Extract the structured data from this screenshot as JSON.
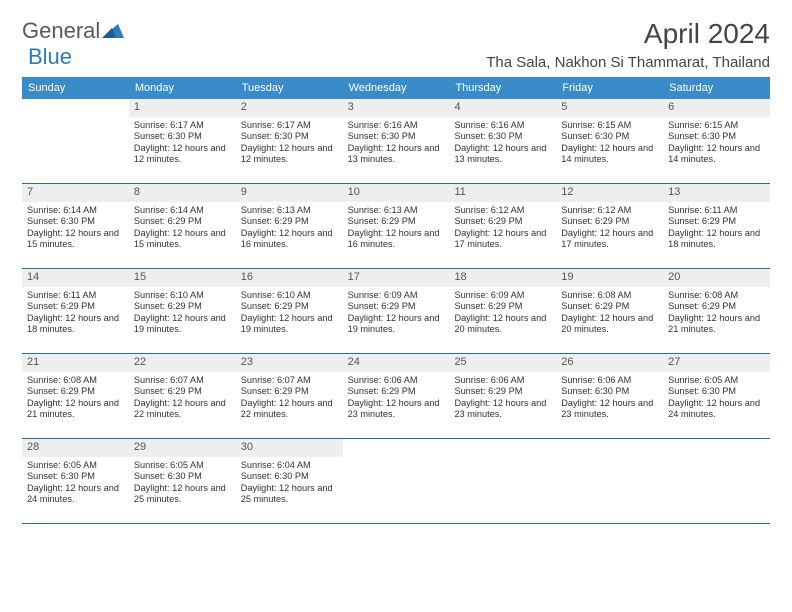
{
  "logo": {
    "text1": "General",
    "text2": "Blue"
  },
  "title": "April 2024",
  "location": "Tha Sala, Nakhon Si Thammarat, Thailand",
  "colors": {
    "header_bg": "#3a8bc9",
    "header_text": "#ffffff",
    "daynum_bg": "#eeeeee",
    "row_border": "#2f6a9e",
    "title_color": "#444444",
    "body_text": "#333333"
  },
  "dow": [
    "Sunday",
    "Monday",
    "Tuesday",
    "Wednesday",
    "Thursday",
    "Friday",
    "Saturday"
  ],
  "weeks": [
    [
      {
        "n": "",
        "sr": "",
        "ss": "",
        "dl": ""
      },
      {
        "n": "1",
        "sr": "Sunrise: 6:17 AM",
        "ss": "Sunset: 6:30 PM",
        "dl": "Daylight: 12 hours and 12 minutes."
      },
      {
        "n": "2",
        "sr": "Sunrise: 6:17 AM",
        "ss": "Sunset: 6:30 PM",
        "dl": "Daylight: 12 hours and 12 minutes."
      },
      {
        "n": "3",
        "sr": "Sunrise: 6:16 AM",
        "ss": "Sunset: 6:30 PM",
        "dl": "Daylight: 12 hours and 13 minutes."
      },
      {
        "n": "4",
        "sr": "Sunrise: 6:16 AM",
        "ss": "Sunset: 6:30 PM",
        "dl": "Daylight: 12 hours and 13 minutes."
      },
      {
        "n": "5",
        "sr": "Sunrise: 6:15 AM",
        "ss": "Sunset: 6:30 PM",
        "dl": "Daylight: 12 hours and 14 minutes."
      },
      {
        "n": "6",
        "sr": "Sunrise: 6:15 AM",
        "ss": "Sunset: 6:30 PM",
        "dl": "Daylight: 12 hours and 14 minutes."
      }
    ],
    [
      {
        "n": "7",
        "sr": "Sunrise: 6:14 AM",
        "ss": "Sunset: 6:30 PM",
        "dl": "Daylight: 12 hours and 15 minutes."
      },
      {
        "n": "8",
        "sr": "Sunrise: 6:14 AM",
        "ss": "Sunset: 6:29 PM",
        "dl": "Daylight: 12 hours and 15 minutes."
      },
      {
        "n": "9",
        "sr": "Sunrise: 6:13 AM",
        "ss": "Sunset: 6:29 PM",
        "dl": "Daylight: 12 hours and 16 minutes."
      },
      {
        "n": "10",
        "sr": "Sunrise: 6:13 AM",
        "ss": "Sunset: 6:29 PM",
        "dl": "Daylight: 12 hours and 16 minutes."
      },
      {
        "n": "11",
        "sr": "Sunrise: 6:12 AM",
        "ss": "Sunset: 6:29 PM",
        "dl": "Daylight: 12 hours and 17 minutes."
      },
      {
        "n": "12",
        "sr": "Sunrise: 6:12 AM",
        "ss": "Sunset: 6:29 PM",
        "dl": "Daylight: 12 hours and 17 minutes."
      },
      {
        "n": "13",
        "sr": "Sunrise: 6:11 AM",
        "ss": "Sunset: 6:29 PM",
        "dl": "Daylight: 12 hours and 18 minutes."
      }
    ],
    [
      {
        "n": "14",
        "sr": "Sunrise: 6:11 AM",
        "ss": "Sunset: 6:29 PM",
        "dl": "Daylight: 12 hours and 18 minutes."
      },
      {
        "n": "15",
        "sr": "Sunrise: 6:10 AM",
        "ss": "Sunset: 6:29 PM",
        "dl": "Daylight: 12 hours and 19 minutes."
      },
      {
        "n": "16",
        "sr": "Sunrise: 6:10 AM",
        "ss": "Sunset: 6:29 PM",
        "dl": "Daylight: 12 hours and 19 minutes."
      },
      {
        "n": "17",
        "sr": "Sunrise: 6:09 AM",
        "ss": "Sunset: 6:29 PM",
        "dl": "Daylight: 12 hours and 19 minutes."
      },
      {
        "n": "18",
        "sr": "Sunrise: 6:09 AM",
        "ss": "Sunset: 6:29 PM",
        "dl": "Daylight: 12 hours and 20 minutes."
      },
      {
        "n": "19",
        "sr": "Sunrise: 6:08 AM",
        "ss": "Sunset: 6:29 PM",
        "dl": "Daylight: 12 hours and 20 minutes."
      },
      {
        "n": "20",
        "sr": "Sunrise: 6:08 AM",
        "ss": "Sunset: 6:29 PM",
        "dl": "Daylight: 12 hours and 21 minutes."
      }
    ],
    [
      {
        "n": "21",
        "sr": "Sunrise: 6:08 AM",
        "ss": "Sunset: 6:29 PM",
        "dl": "Daylight: 12 hours and 21 minutes."
      },
      {
        "n": "22",
        "sr": "Sunrise: 6:07 AM",
        "ss": "Sunset: 6:29 PM",
        "dl": "Daylight: 12 hours and 22 minutes."
      },
      {
        "n": "23",
        "sr": "Sunrise: 6:07 AM",
        "ss": "Sunset: 6:29 PM",
        "dl": "Daylight: 12 hours and 22 minutes."
      },
      {
        "n": "24",
        "sr": "Sunrise: 6:06 AM",
        "ss": "Sunset: 6:29 PM",
        "dl": "Daylight: 12 hours and 23 minutes."
      },
      {
        "n": "25",
        "sr": "Sunrise: 6:06 AM",
        "ss": "Sunset: 6:29 PM",
        "dl": "Daylight: 12 hours and 23 minutes."
      },
      {
        "n": "26",
        "sr": "Sunrise: 6:06 AM",
        "ss": "Sunset: 6:30 PM",
        "dl": "Daylight: 12 hours and 23 minutes."
      },
      {
        "n": "27",
        "sr": "Sunrise: 6:05 AM",
        "ss": "Sunset: 6:30 PM",
        "dl": "Daylight: 12 hours and 24 minutes."
      }
    ],
    [
      {
        "n": "28",
        "sr": "Sunrise: 6:05 AM",
        "ss": "Sunset: 6:30 PM",
        "dl": "Daylight: 12 hours and 24 minutes."
      },
      {
        "n": "29",
        "sr": "Sunrise: 6:05 AM",
        "ss": "Sunset: 6:30 PM",
        "dl": "Daylight: 12 hours and 25 minutes."
      },
      {
        "n": "30",
        "sr": "Sunrise: 6:04 AM",
        "ss": "Sunset: 6:30 PM",
        "dl": "Daylight: 12 hours and 25 minutes."
      },
      {
        "n": "",
        "sr": "",
        "ss": "",
        "dl": ""
      },
      {
        "n": "",
        "sr": "",
        "ss": "",
        "dl": ""
      },
      {
        "n": "",
        "sr": "",
        "ss": "",
        "dl": ""
      },
      {
        "n": "",
        "sr": "",
        "ss": "",
        "dl": ""
      }
    ]
  ]
}
